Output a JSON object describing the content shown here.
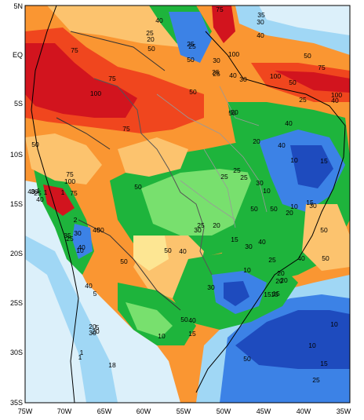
{
  "map": {
    "lat_labels": [
      "5N",
      "EQ",
      "5S",
      "10S",
      "15S",
      "20S",
      "25S",
      "30S",
      "35S"
    ],
    "lon_labels": [
      "75W",
      "70W",
      "65W",
      "60W",
      "55W",
      "50W",
      "45W",
      "40W",
      "35W"
    ],
    "colors": {
      "darkred": "#d2141e",
      "red": "#f0461e",
      "orange": "#fa9632",
      "lightorange": "#fcc36e",
      "yellow": "#fde693",
      "lightgreen": "#78e06e",
      "green": "#1eb43c",
      "darkgreen": "#0a8c28",
      "lightblue": "#a0d7f5",
      "paleblue": "#dcf0fa",
      "blue": "#3c82e6",
      "darkblue": "#1e4bbe"
    },
    "contour_labels": [
      "75",
      "25",
      "20",
      "35",
      "30",
      "40",
      "40",
      "25",
      "50",
      "50",
      "75",
      "75",
      "100",
      "25",
      "30",
      "25",
      "40",
      "25",
      "50",
      "100",
      "75",
      "100",
      "100",
      "50",
      "50",
      "30",
      "25",
      "40",
      "50",
      "75",
      "50",
      "20",
      "40",
      "50",
      "10",
      "40",
      "25",
      "15",
      "75",
      "100",
      "30",
      "25",
      "50",
      "40",
      "30",
      "25",
      "10",
      "75",
      "50",
      "25",
      "20",
      "30",
      "15",
      "10",
      "50",
      "50",
      "40",
      "50",
      "25",
      "30",
      "50",
      "40",
      "35",
      "25",
      "15",
      "40",
      "20",
      "50",
      "10",
      "40",
      "30",
      "50",
      "25",
      "40",
      "15",
      "10",
      "15",
      "20",
      "50",
      "40",
      "10",
      "15",
      "5",
      "40",
      "20",
      "30",
      "10",
      "15",
      "50",
      "10",
      "15",
      "30",
      "20",
      "25",
      "20",
      "1",
      "5",
      "20",
      "18",
      "1",
      "1",
      "2",
      "30",
      "40",
      "1",
      "1"
    ]
  }
}
